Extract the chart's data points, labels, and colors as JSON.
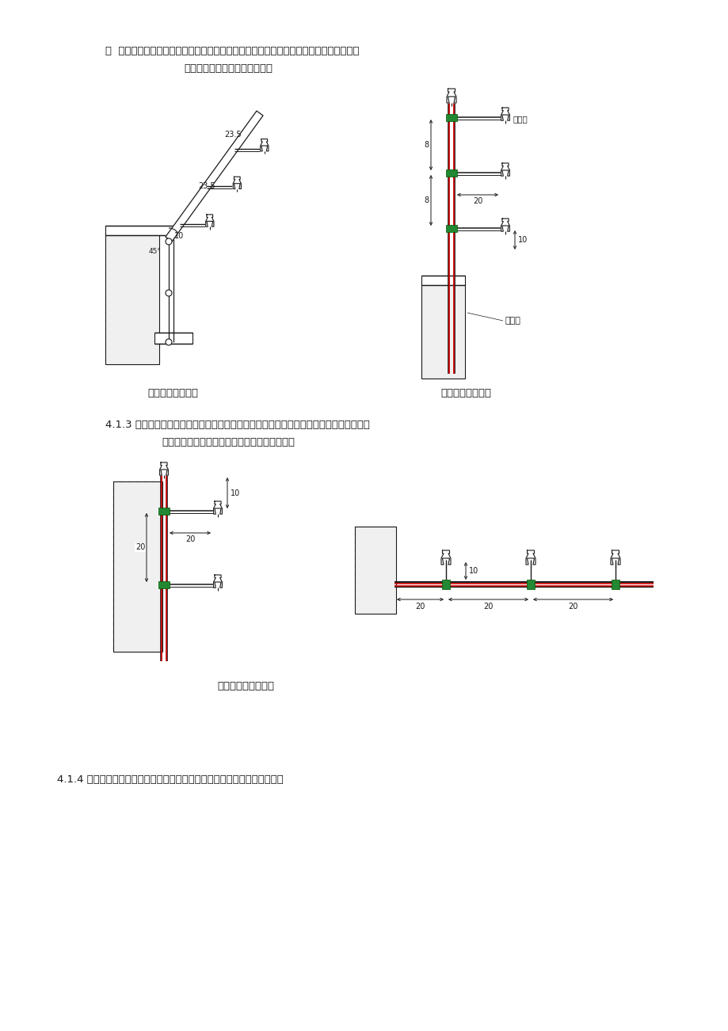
{
  "page_bg": "#ffffff",
  "text_color": "#1a1a1a",
  "line_color": "#1a1a1a",
  "red_color": "#cc0000",
  "green_color": "#336633",
  "hatch_color": "#555555",
  "para1_line1": "项  不管地势走势如何，荀杆的焊接需保证绵缘子是竖直向上的，以免下雨时水流将探测电",
  "para1_line2": "缆与支架荀杆导通，引起误报。",
  "label_left": "墙体顶部倾斜安装",
  "label_right": "墙体顶部垂直安装",
  "para2_line1": "4.1.3 支架可安装在围墙的内侧或外侧并与围墙垂直安装，墙体中部与楼层间的支架需用膨",
  "para2_line2": "胀荀杆将支架牢固安装在墙体上，保证其稳固。",
  "caption_mid": "墙体中部安装示意图",
  "para3": "4.1.4 台阶及转角的安装方式应保证导线之间平行，支架的强度需足够，若强",
  "dim_23_5a": "23.5",
  "dim_23_5b": "23.5",
  "dim_10a": "10",
  "dim_8a": "8",
  "dim_8b": "8",
  "dim_10b": "10",
  "dim_20a": "20",
  "dim_20b": "20",
  "dim_20c": "20",
  "dim_20d": "20",
  "dim_20e": "20",
  "dim_20f": "20",
  "label_insulator": "绵缘子",
  "label_bolt": "膨胀钉"
}
